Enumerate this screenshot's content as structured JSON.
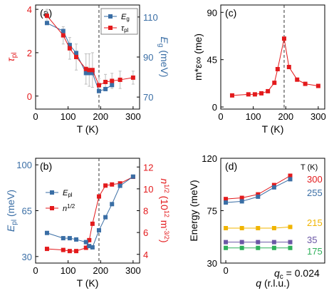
{
  "chart_data": [
    {
      "panel": "(a)",
      "type": "line",
      "xlabel": "T (K)",
      "xlim": [
        0,
        320
      ],
      "xticks": [
        "0",
        "100",
        "200",
        "300"
      ],
      "ylabel_left": "τpl",
      "ylabel_right": "Eg (meV)",
      "ylim_left": [
        -0.6,
        4.2
      ],
      "ylim_right": [
        64,
        116
      ],
      "yticks_left": [
        "0",
        "2",
        "4"
      ],
      "yticks_right": [
        "70",
        "90",
        "110"
      ],
      "vline_x": 195,
      "legend": "top-right",
      "series": [
        {
          "name": "Eg",
          "axis": "right",
          "color": "#3a6ea5",
          "marker": "square",
          "x": [
            35,
            85,
            105,
            125,
            155,
            165,
            175,
            195,
            215,
            235
          ],
          "y": [
            107,
            103,
            96,
            92,
            82,
            82,
            82,
            73,
            74,
            76
          ]
        },
        {
          "name": "τpl",
          "axis": "left",
          "color": "#e31a1c",
          "marker": "square",
          "x": [
            35,
            85,
            105,
            125,
            155,
            165,
            175,
            195,
            215,
            235,
            260,
            300
          ],
          "y": [
            3.7,
            2.8,
            2.2,
            1.8,
            1.25,
            1.2,
            1.2,
            0.5,
            0.65,
            0.7,
            0.75,
            0.85
          ],
          "yerr": [
            0.3,
            0.4,
            0.5,
            0.6,
            0.7,
            0.75,
            0.8,
            0.3,
            0.35,
            0.35,
            0.4,
            0.3
          ]
        }
      ]
    },
    {
      "panel": "(b)",
      "type": "line",
      "xlabel": "T (K)",
      "xlim": [
        0,
        320
      ],
      "xticks": [
        "0",
        "100",
        "200",
        "300"
      ],
      "ylabel_left": "Epl (meV)",
      "ylabel_right": "n1/2 (1012 m-3/2)",
      "ylim_left": [
        25,
        105
      ],
      "ylim_right": [
        3.2,
        12.8
      ],
      "yticks_left": [
        "30",
        "65",
        "100"
      ],
      "yticks_right": [
        "4",
        "6",
        "8",
        "10",
        "12"
      ],
      "vline_x": 195,
      "legend": "left-middle",
      "series": [
        {
          "name": "Epl",
          "axis": "left",
          "color": "#3a6ea5",
          "marker": "square",
          "x": [
            35,
            85,
            105,
            125,
            155,
            165,
            175,
            195,
            215,
            235,
            260,
            300
          ],
          "y": [
            48,
            44,
            44,
            43,
            41,
            38,
            37,
            50,
            60,
            70,
            84,
            91
          ]
        },
        {
          "name": "n1/2",
          "axis": "right",
          "color": "#e31a1c",
          "marker": "square",
          "x": [
            35,
            85,
            105,
            125,
            155,
            165,
            175,
            195,
            215,
            235,
            260,
            300
          ],
          "y": [
            4.5,
            4.4,
            4.3,
            4.3,
            4.6,
            5.3,
            6.8,
            9.3,
            10.3,
            10.4,
            10.5,
            11.1
          ]
        }
      ]
    },
    {
      "panel": "(c)",
      "type": "line",
      "xlabel": "T (K)",
      "xlim": [
        0,
        320
      ],
      "xticks": [
        "0",
        "100",
        "200",
        "300"
      ],
      "ylabel": "m*ε∞ (me)",
      "ylim": [
        -2,
        97
      ],
      "yticks": [
        "0",
        "45",
        "90"
      ],
      "vline_x": 195,
      "series": [
        {
          "name": "",
          "color": "#e31a1c",
          "marker": "square",
          "x": [
            35,
            85,
            105,
            125,
            145,
            165,
            175,
            195,
            210,
            235,
            260,
            300
          ],
          "y": [
            11,
            12,
            12,
            13,
            15,
            23,
            36,
            65,
            38,
            26,
            22,
            20
          ]
        }
      ]
    },
    {
      "panel": "(d)",
      "type": "line",
      "xlabel": "q (r.l.u.)",
      "ylabel": "Energy (meV)",
      "ylim": [
        30,
        120
      ],
      "yticks": [
        "30",
        "75",
        "120"
      ],
      "xticks": [
        "0"
      ],
      "annotation": "qc = 0.024",
      "legend_title": "T (K)",
      "series": [
        {
          "name": "300",
          "color": "#e31a1c",
          "marker": "square",
          "x": [
            0,
            0.0048,
            0.0096,
            0.0144,
            0.0192
          ],
          "y": [
            85,
            86,
            89,
            97,
            105
          ]
        },
        {
          "name": "255",
          "color": "#3a6ea5",
          "marker": "square",
          "x": [
            0,
            0.0048,
            0.0096,
            0.0144,
            0.0192
          ],
          "y": [
            82,
            83,
            87,
            95,
            102
          ]
        },
        {
          "name": "215",
          "color": "#f0b400",
          "marker": "square",
          "x": [
            0,
            0.0048,
            0.0096,
            0.0144,
            0.0192
          ],
          "y": [
            60,
            60,
            60,
            60,
            61
          ]
        },
        {
          "name": "35",
          "color": "#6b57a5",
          "marker": "square",
          "x": [
            0,
            0.0048,
            0.0096,
            0.0144,
            0.0192
          ],
          "y": [
            48,
            48,
            48,
            48,
            48
          ]
        },
        {
          "name": "175",
          "color": "#2fb05a",
          "marker": "square",
          "x": [
            0,
            0.0048,
            0.0096,
            0.0144,
            0.0192
          ],
          "y": [
            43,
            43,
            43,
            43,
            43
          ]
        }
      ]
    }
  ]
}
